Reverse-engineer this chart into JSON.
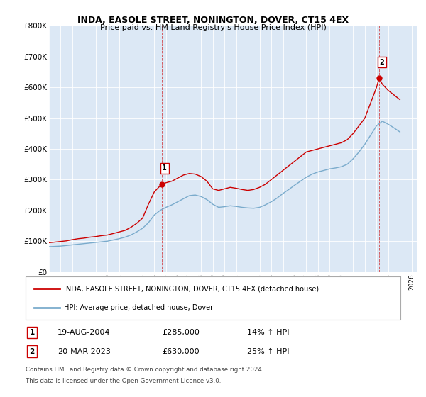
{
  "title": "INDA, EASOLE STREET, NONINGTON, DOVER, CT15 4EX",
  "subtitle": "Price paid vs. HM Land Registry's House Price Index (HPI)",
  "red_label": "INDA, EASOLE STREET, NONINGTON, DOVER, CT15 4EX (detached house)",
  "blue_label": "HPI: Average price, detached house, Dover",
  "point1_label": "19-AUG-2004",
  "point1_price": "£285,000",
  "point1_hpi": "14% ↑ HPI",
  "point2_label": "20-MAR-2023",
  "point2_price": "£630,000",
  "point2_hpi": "25% ↑ HPI",
  "footer1": "Contains HM Land Registry data © Crown copyright and database right 2024.",
  "footer2": "This data is licensed under the Open Government Licence v3.0.",
  "ylim": [
    0,
    800000
  ],
  "yticks": [
    0,
    100000,
    200000,
    300000,
    400000,
    500000,
    600000,
    700000,
    800000
  ],
  "ytick_labels": [
    "£0",
    "£100K",
    "£200K",
    "£300K",
    "£400K",
    "£500K",
    "£600K",
    "£700K",
    "£800K"
  ],
  "xlim_start": 1995.0,
  "xlim_end": 2026.5,
  "red_color": "#cc0000",
  "blue_color": "#7aabcc",
  "bg_color": "#dce8f5",
  "plot_bg": "#ffffff",
  "point1_x": 2004.63,
  "point1_y": 285000,
  "point2_x": 2023.22,
  "point2_y": 630000,
  "red_years": [
    1995.0,
    1995.5,
    1996.0,
    1996.5,
    1997.0,
    1997.5,
    1998.0,
    1998.5,
    1999.0,
    1999.5,
    2000.0,
    2000.5,
    2001.0,
    2001.5,
    2002.0,
    2002.5,
    2003.0,
    2003.5,
    2004.0,
    2004.5,
    2004.63,
    2005.0,
    2005.5,
    2006.0,
    2006.5,
    2007.0,
    2007.5,
    2008.0,
    2008.5,
    2009.0,
    2009.5,
    2010.0,
    2010.5,
    2011.0,
    2011.5,
    2012.0,
    2012.5,
    2013.0,
    2013.5,
    2014.0,
    2014.5,
    2015.0,
    2015.5,
    2016.0,
    2016.5,
    2017.0,
    2017.5,
    2018.0,
    2018.5,
    2019.0,
    2019.5,
    2020.0,
    2020.5,
    2021.0,
    2021.5,
    2022.0,
    2022.5,
    2023.0,
    2023.22,
    2023.5,
    2024.0,
    2024.5,
    2025.0
  ],
  "red_values": [
    95000,
    97000,
    99000,
    101000,
    105000,
    108000,
    110000,
    113000,
    115000,
    118000,
    120000,
    125000,
    130000,
    135000,
    145000,
    158000,
    175000,
    220000,
    260000,
    280000,
    285000,
    290000,
    295000,
    305000,
    315000,
    320000,
    318000,
    310000,
    295000,
    270000,
    265000,
    270000,
    275000,
    272000,
    268000,
    265000,
    268000,
    275000,
    285000,
    300000,
    315000,
    330000,
    345000,
    360000,
    375000,
    390000,
    395000,
    400000,
    405000,
    410000,
    415000,
    420000,
    430000,
    450000,
    475000,
    500000,
    550000,
    600000,
    630000,
    610000,
    590000,
    575000,
    560000
  ],
  "blue_years": [
    1995.0,
    1995.5,
    1996.0,
    1996.5,
    1997.0,
    1997.5,
    1998.0,
    1998.5,
    1999.0,
    1999.5,
    2000.0,
    2000.5,
    2001.0,
    2001.5,
    2002.0,
    2002.5,
    2003.0,
    2003.5,
    2004.0,
    2004.5,
    2005.0,
    2005.5,
    2006.0,
    2006.5,
    2007.0,
    2007.5,
    2008.0,
    2008.5,
    2009.0,
    2009.5,
    2010.0,
    2010.5,
    2011.0,
    2011.5,
    2012.0,
    2012.5,
    2013.0,
    2013.5,
    2014.0,
    2014.5,
    2015.0,
    2015.5,
    2016.0,
    2016.5,
    2017.0,
    2017.5,
    2018.0,
    2018.5,
    2019.0,
    2019.5,
    2020.0,
    2020.5,
    2021.0,
    2021.5,
    2022.0,
    2022.5,
    2023.0,
    2023.5,
    2024.0,
    2024.5,
    2025.0
  ],
  "blue_values": [
    82000,
    83000,
    84000,
    86000,
    88000,
    90000,
    92000,
    94000,
    96000,
    98000,
    100000,
    104000,
    108000,
    113000,
    120000,
    130000,
    142000,
    160000,
    185000,
    200000,
    210000,
    218000,
    228000,
    238000,
    248000,
    250000,
    245000,
    235000,
    220000,
    210000,
    212000,
    215000,
    213000,
    210000,
    208000,
    207000,
    210000,
    218000,
    228000,
    240000,
    255000,
    268000,
    282000,
    295000,
    308000,
    318000,
    325000,
    330000,
    335000,
    338000,
    342000,
    350000,
    368000,
    390000,
    415000,
    445000,
    475000,
    490000,
    480000,
    468000,
    455000
  ]
}
